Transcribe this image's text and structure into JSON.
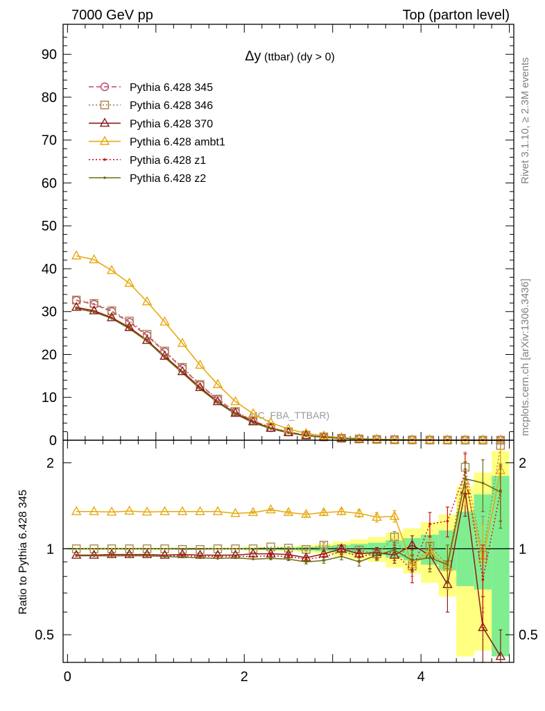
{
  "header": {
    "left": "7000 GeV pp",
    "right": "Top (parton level)"
  },
  "side_labels": {
    "rivet": "Rivet 3.1.10, ≥ 2.3M events",
    "mcplots": "mcplots.cern.ch [arXiv:1306.3436]"
  },
  "chart_data": [
    {
      "type": "line",
      "title_symbol": "Δy",
      "title_rest": " (ttbar) (dy > 0)",
      "watermark": "MC_FBA_TTBAR)",
      "xlim": [
        -0.05,
        5.05
      ],
      "ylim": [
        0,
        97
      ],
      "y_ticks": [
        "0",
        "10",
        "20",
        "30",
        "40",
        "50",
        "60",
        "70",
        "80",
        "90"
      ],
      "x": [
        0.1,
        0.3,
        0.5,
        0.7,
        0.9,
        1.1,
        1.3,
        1.5,
        1.7,
        1.9,
        2.1,
        2.3,
        2.5,
        2.7,
        2.9,
        3.1,
        3.3,
        3.5,
        3.7,
        3.9,
        4.1,
        4.3,
        4.5,
        4.7,
        4.9
      ],
      "legend_placement": "top-left",
      "series": [
        {
          "name": "Pythia 6.428 345",
          "color": "#c0446a",
          "dash": "7,4",
          "marker": "circle",
          "values": [
            32.6,
            31.7,
            30.0,
            27.5,
            24.4,
            20.6,
            16.8,
            12.9,
            9.5,
            6.6,
            4.5,
            2.9,
            1.9,
            1.2,
            0.75,
            0.45,
            0.3,
            0.18,
            0.11,
            0.07,
            0.045,
            0.03,
            0.02,
            0.015,
            0.01
          ]
        },
        {
          "name": "Pythia 6.428 346",
          "color": "#a8844f",
          "dash": "2,3",
          "marker": "square",
          "values": [
            32.7,
            31.9,
            30.2,
            27.8,
            24.7,
            20.8,
            17.0,
            13.0,
            9.6,
            6.7,
            4.6,
            3.0,
            1.95,
            1.2,
            0.78,
            0.46,
            0.3,
            0.18,
            0.11,
            0.07,
            0.046,
            0.03,
            0.02,
            0.015,
            0.01
          ]
        },
        {
          "name": "Pythia 6.428 370",
          "color": "#8b1a1a",
          "dash": "",
          "marker": "triangle",
          "values": [
            31.0,
            30.2,
            28.6,
            26.3,
            23.3,
            19.6,
            16.0,
            12.3,
            9.0,
            6.3,
            4.3,
            2.8,
            1.8,
            1.1,
            0.72,
            0.44,
            0.28,
            0.17,
            0.1,
            0.07,
            0.042,
            0.025,
            0.02,
            0.01,
            0.005
          ]
        },
        {
          "name": "Pythia 6.428 ambt1",
          "color": "#e8a80c",
          "dash": "",
          "marker": "triangle",
          "values": [
            43.0,
            42.1,
            39.6,
            36.6,
            32.3,
            27.6,
            22.6,
            17.5,
            13.0,
            9.0,
            6.2,
            4.1,
            2.6,
            1.6,
            1.0,
            0.62,
            0.38,
            0.23,
            0.14,
            0.09,
            0.05,
            0.03,
            0.02,
            0.01,
            0.01
          ]
        },
        {
          "name": "Pythia 6.428 z1",
          "color": "#d01010",
          "dash": "2,3",
          "marker": "dot",
          "values": [
            30.9,
            30.1,
            28.6,
            26.3,
            23.3,
            19.5,
            15.9,
            12.2,
            8.9,
            6.2,
            4.2,
            2.7,
            1.75,
            1.1,
            0.7,
            0.44,
            0.28,
            0.17,
            0.1,
            0.06,
            0.04,
            0.025,
            0.02,
            0.015,
            0.01
          ]
        },
        {
          "name": "Pythia 6.428 z2",
          "color": "#6b6b10",
          "dash": "",
          "marker": "dot",
          "values": [
            30.7,
            29.9,
            28.4,
            26.0,
            23.1,
            19.3,
            15.7,
            12.0,
            8.8,
            6.1,
            4.1,
            2.7,
            1.7,
            1.05,
            0.68,
            0.42,
            0.27,
            0.16,
            0.1,
            0.06,
            0.04,
            0.025,
            0.015,
            0.01,
            0.005
          ]
        }
      ]
    },
    {
      "type": "line",
      "ylabel": "Ratio to Pythia 6.428 345",
      "y_scale": "log",
      "ylim": [
        0.4,
        2.4
      ],
      "y_ticks": [
        {
          "value": 0.5,
          "label": "0.5"
        },
        {
          "value": 1,
          "label": "1"
        },
        {
          "value": 2,
          "label": "2"
        }
      ],
      "x_ticks": [
        {
          "value": 0,
          "label": "0"
        },
        {
          "value": 2,
          "label": "2"
        },
        {
          "value": 4,
          "label": "4"
        }
      ],
      "reference_line": 1,
      "band_colors": {
        "inner": "#80ee90",
        "outer": "#ffff80"
      },
      "bands": [
        {
          "x0": 0.0,
          "x1": 0.2,
          "inner": [
            0.995,
            1.005
          ],
          "outer": [
            0.99,
            1.01
          ]
        },
        {
          "x0": 0.2,
          "x1": 0.4,
          "inner": [
            0.995,
            1.005
          ],
          "outer": [
            0.99,
            1.01
          ]
        },
        {
          "x0": 0.4,
          "x1": 0.6,
          "inner": [
            0.995,
            1.005
          ],
          "outer": [
            0.99,
            1.01
          ]
        },
        {
          "x0": 0.6,
          "x1": 0.8,
          "inner": [
            0.995,
            1.005
          ],
          "outer": [
            0.99,
            1.01
          ]
        },
        {
          "x0": 0.8,
          "x1": 1.0,
          "inner": [
            0.995,
            1.005
          ],
          "outer": [
            0.99,
            1.01
          ]
        },
        {
          "x0": 1.0,
          "x1": 1.2,
          "inner": [
            0.995,
            1.005
          ],
          "outer": [
            0.99,
            1.01
          ]
        },
        {
          "x0": 1.2,
          "x1": 1.4,
          "inner": [
            0.995,
            1.005
          ],
          "outer": [
            0.99,
            1.01
          ]
        },
        {
          "x0": 1.4,
          "x1": 1.6,
          "inner": [
            0.995,
            1.005
          ],
          "outer": [
            0.99,
            1.01
          ]
        },
        {
          "x0": 1.6,
          "x1": 1.8,
          "inner": [
            0.995,
            1.005
          ],
          "outer": [
            0.99,
            1.01
          ]
        },
        {
          "x0": 1.8,
          "x1": 2.0,
          "inner": [
            0.995,
            1.005
          ],
          "outer": [
            0.99,
            1.01
          ]
        },
        {
          "x0": 2.0,
          "x1": 2.2,
          "inner": [
            0.993,
            1.007
          ],
          "outer": [
            0.985,
            1.015
          ]
        },
        {
          "x0": 2.2,
          "x1": 2.4,
          "inner": [
            0.993,
            1.007
          ],
          "outer": [
            0.985,
            1.015
          ]
        },
        {
          "x0": 2.4,
          "x1": 2.6,
          "inner": [
            0.99,
            1.01
          ],
          "outer": [
            0.98,
            1.02
          ]
        },
        {
          "x0": 2.6,
          "x1": 2.8,
          "inner": [
            0.985,
            1.015
          ],
          "outer": [
            0.97,
            1.03
          ]
        },
        {
          "x0": 2.8,
          "x1": 3.0,
          "inner": [
            0.98,
            1.02
          ],
          "outer": [
            0.96,
            1.04
          ]
        },
        {
          "x0": 3.0,
          "x1": 3.2,
          "inner": [
            0.97,
            1.03
          ],
          "outer": [
            0.94,
            1.06
          ]
        },
        {
          "x0": 3.2,
          "x1": 3.4,
          "inner": [
            0.96,
            1.04
          ],
          "outer": [
            0.92,
            1.08
          ]
        },
        {
          "x0": 3.4,
          "x1": 3.6,
          "inner": [
            0.95,
            1.05
          ],
          "outer": [
            0.9,
            1.1
          ]
        },
        {
          "x0": 3.6,
          "x1": 3.8,
          "inner": [
            0.93,
            1.07
          ],
          "outer": [
            0.86,
            1.14
          ]
        },
        {
          "x0": 3.8,
          "x1": 4.0,
          "inner": [
            0.91,
            1.09
          ],
          "outer": [
            0.82,
            1.18
          ]
        },
        {
          "x0": 4.0,
          "x1": 4.2,
          "inner": [
            0.88,
            1.12
          ],
          "outer": [
            0.76,
            1.24
          ]
        },
        {
          "x0": 4.2,
          "x1": 4.4,
          "inner": [
            0.84,
            1.16
          ],
          "outer": [
            0.68,
            1.32
          ]
        },
        {
          "x0": 4.4,
          "x1": 4.6,
          "inner": [
            0.74,
            1.35
          ],
          "outer": [
            0.42,
            1.65
          ]
        },
        {
          "x0": 4.6,
          "x1": 4.8,
          "inner": [
            0.72,
            1.55
          ],
          "outer": [
            0.44,
            1.85
          ]
        },
        {
          "x0": 4.8,
          "x1": 5.0,
          "inner": [
            0.42,
            1.8
          ],
          "outer": [
            0.42,
            2.2
          ]
        }
      ],
      "series": [
        {
          "name": "Pythia 6.428 345",
          "values": [
            1,
            1,
            1,
            1,
            1,
            1,
            1,
            1,
            1,
            1,
            1,
            1,
            1,
            1,
            1,
            1,
            1,
            1,
            1,
            1,
            1,
            1,
            1,
            1,
            1
          ],
          "err": []
        },
        {
          "name": "Pythia 6.428 346",
          "values": [
            1.0,
            1.0,
            1.0,
            1.0,
            1.0,
            1.0,
            0.995,
            0.995,
            1.0,
            1.0,
            1.0,
            1.015,
            1.005,
            0.995,
            1.03,
            1.0,
            0.99,
            0.96,
            1.1,
            0.87,
            1.02,
            0.88,
            1.93,
            0.95,
            2.3
          ],
          "err": [
            0.004,
            0.004,
            0.004,
            0.004,
            0.004,
            0.004,
            0.004,
            0.004,
            0.004,
            0.005,
            0.006,
            0.008,
            0.01,
            0.013,
            0.02,
            0.02,
            0.03,
            0.04,
            0.05,
            0.07,
            0.09,
            0.12,
            0.25,
            0.35,
            0.4
          ]
        },
        {
          "name": "Pythia 6.428 370",
          "values": [
            0.95,
            0.95,
            0.955,
            0.955,
            0.955,
            0.95,
            0.955,
            0.95,
            0.95,
            0.95,
            0.96,
            0.96,
            0.955,
            0.93,
            0.96,
            1.0,
            0.96,
            0.97,
            0.95,
            1.03,
            0.95,
            0.75,
            1.6,
            0.53,
            0.42
          ],
          "err": [
            0.004,
            0.004,
            0.004,
            0.004,
            0.004,
            0.004,
            0.004,
            0.004,
            0.005,
            0.006,
            0.007,
            0.009,
            0.011,
            0.015,
            0.02,
            0.025,
            0.03,
            0.04,
            0.06,
            0.08,
            0.1,
            0.15,
            0.3,
            0.15,
            0.1
          ]
        },
        {
          "name": "Pythia 6.428 ambt1",
          "values": [
            1.35,
            1.35,
            1.345,
            1.355,
            1.345,
            1.35,
            1.35,
            1.35,
            1.35,
            1.33,
            1.34,
            1.37,
            1.34,
            1.32,
            1.34,
            1.35,
            1.33,
            1.29,
            1.3,
            0.88,
            0.98,
            0.86,
            1.72,
            0.92,
            1.88
          ],
          "err": [
            0.005,
            0.005,
            0.005,
            0.005,
            0.005,
            0.005,
            0.005,
            0.006,
            0.007,
            0.008,
            0.01,
            0.012,
            0.015,
            0.02,
            0.025,
            0.03,
            0.04,
            0.05,
            0.06,
            0.08,
            0.1,
            0.14,
            0.3,
            0.3,
            0.35
          ]
        },
        {
          "name": "Pythia 6.428 z1",
          "values": [
            0.95,
            0.95,
            0.955,
            0.95,
            0.95,
            0.945,
            0.945,
            0.94,
            0.94,
            0.94,
            0.94,
            0.945,
            0.94,
            0.92,
            0.935,
            0.98,
            0.94,
            0.96,
            0.97,
            0.84,
            1.22,
            1.25,
            1.85,
            0.78,
            1.6
          ],
          "err": [
            0.004,
            0.004,
            0.004,
            0.004,
            0.004,
            0.004,
            0.004,
            0.004,
            0.005,
            0.006,
            0.007,
            0.009,
            0.011,
            0.015,
            0.02,
            0.025,
            0.03,
            0.04,
            0.06,
            0.08,
            0.12,
            0.15,
            0.3,
            0.25,
            0.35
          ]
        },
        {
          "name": "Pythia 6.428 z2",
          "values": [
            0.945,
            0.945,
            0.945,
            0.945,
            0.945,
            0.94,
            0.935,
            0.93,
            0.925,
            0.93,
            0.92,
            0.925,
            0.92,
            0.9,
            0.91,
            0.94,
            0.9,
            0.95,
            0.99,
            0.91,
            0.93,
            0.88,
            1.76,
            1.7,
            1.58
          ],
          "err": [
            0.004,
            0.004,
            0.004,
            0.004,
            0.004,
            0.004,
            0.004,
            0.004,
            0.005,
            0.006,
            0.007,
            0.009,
            0.011,
            0.015,
            0.02,
            0.025,
            0.03,
            0.04,
            0.06,
            0.08,
            0.1,
            0.15,
            0.25,
            0.35,
            0.4
          ]
        }
      ]
    }
  ]
}
